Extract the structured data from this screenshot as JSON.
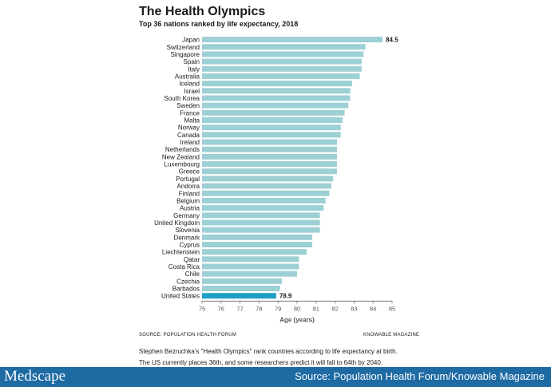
{
  "title": "The Health Olympics",
  "subtitle": "Top 36 nations ranked by life expectancy, 2018",
  "source_left": "SOURCE: POPULATION HEALTH FORUM",
  "source_right": "KNOWABLE MAGAZINE",
  "caption": [
    "Stephen Bezruchka's \"Health Olympics\" rank countries according to life expectancy at birth.",
    "The US currently places 36th, and some researchers predict it will fall to 64th by 2040."
  ],
  "footer": {
    "brand": "Medscape",
    "source": "Source: Population Health Forum/Knowable Magazine"
  },
  "colors": {
    "bar": "#9dd0d4",
    "highlight": "#1e9fc6",
    "footer": "#1e6aa3"
  },
  "chart_data": {
    "type": "bar",
    "orientation": "horizontal",
    "title": "The Health Olympics",
    "subtitle": "Top 36 nations ranked by life expectancy, 2018",
    "xlabel": "Age (years)",
    "ylabel": "",
    "xlim": [
      75,
      85
    ],
    "ticks": [
      75,
      76,
      77,
      78,
      79,
      80,
      81,
      82,
      83,
      84,
      85
    ],
    "grid": false,
    "categories": [
      "Japan",
      "Switzerland",
      "Singapore",
      "Spain",
      "Italy",
      "Australia",
      "Iceland",
      "Israel",
      "South Korea",
      "Sweden",
      "France",
      "Malta",
      "Norway",
      "Canada",
      "Ireland",
      "Netherlands",
      "New Zealand",
      "Luxembourg",
      "Greece",
      "Portugal",
      "Andorra",
      "Finland",
      "Belgium",
      "Austria",
      "Germany",
      "United Kingdom",
      "Slovenia",
      "Denmark",
      "Cyprus",
      "Liechtenstein",
      "Qatar",
      "Costa Rica",
      "Chile",
      "Czechia",
      "Barbados",
      "United States"
    ],
    "values": [
      84.5,
      83.6,
      83.5,
      83.4,
      83.4,
      83.3,
      82.9,
      82.8,
      82.8,
      82.7,
      82.5,
      82.4,
      82.3,
      82.3,
      82.1,
      82.1,
      82.1,
      82.1,
      82.1,
      81.9,
      81.8,
      81.7,
      81.5,
      81.4,
      81.2,
      81.2,
      81.2,
      80.8,
      80.8,
      80.5,
      80.1,
      80.1,
      80.0,
      79.2,
      79.1,
      78.9
    ],
    "data_labels": [
      {
        "category": "Japan",
        "label": "84.5"
      },
      {
        "category": "United States",
        "label": "78.9"
      }
    ],
    "highlight": "United States"
  }
}
